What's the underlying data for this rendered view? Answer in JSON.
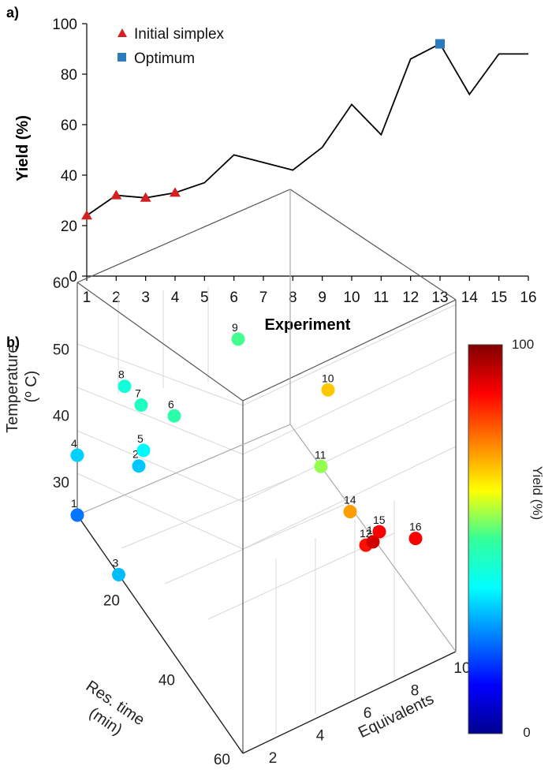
{
  "panels": {
    "a": "a)",
    "b": "b)"
  },
  "chart_data": [
    {
      "type": "line",
      "panel": "a)",
      "xlabel": "Experiment",
      "ylabel": "Yield (%)",
      "x": [
        1,
        2,
        3,
        4,
        5,
        6,
        7,
        8,
        9,
        10,
        11,
        12,
        13,
        14,
        15,
        16
      ],
      "y": [
        24,
        32,
        31,
        33,
        37,
        48,
        45,
        42,
        51,
        68,
        56,
        86,
        92,
        72,
        88,
        88
      ],
      "xlim": [
        1,
        16
      ],
      "ylim": [
        0,
        100
      ],
      "yticks": [
        0,
        20,
        40,
        60,
        80,
        100
      ],
      "xticks": [
        1,
        2,
        3,
        4,
        5,
        6,
        7,
        8,
        9,
        10,
        11,
        12,
        13,
        14,
        15,
        16
      ],
      "markers": [
        {
          "name": "Initial simplex",
          "symbol": "triangle",
          "color": "#d42020",
          "x": [
            1,
            2,
            3,
            4
          ]
        },
        {
          "name": "Optimum",
          "symbol": "square",
          "color": "#2b7bbf",
          "x": [
            13
          ]
        }
      ],
      "legend": [
        "Initial simplex",
        "Optimum"
      ],
      "line_color": "#000000"
    },
    {
      "type": "scatter3d",
      "panel": "b)",
      "xlabel": "Res. time\n(min)",
      "ylabel": "Equivalents",
      "zlabel": "Temperature\n(º C)",
      "colorbar_label": "Yield (%)",
      "colorbar_range": [
        0,
        100
      ],
      "res_time_ticks": [
        20,
        40,
        60
      ],
      "equivalents_ticks": [
        2,
        4,
        6,
        8,
        10
      ],
      "temperature_ticks": [
        30,
        40,
        50,
        60
      ],
      "res_time_range": [
        0,
        60
      ],
      "equivalents_range": [
        1,
        10
      ],
      "temperature_range": [
        25,
        60
      ],
      "points": [
        {
          "label": "1",
          "res_time": 0,
          "equivalents": 1,
          "temperature": 25,
          "yield": 24
        },
        {
          "label": "2",
          "res_time": 0,
          "equivalents": 3.6,
          "temperature": 28,
          "yield": 32
        },
        {
          "label": "3",
          "res_time": 15,
          "equivalents": 1,
          "temperature": 25,
          "yield": 31
        },
        {
          "label": "4",
          "res_time": 0,
          "equivalents": 1,
          "temperature": 34,
          "yield": 33
        },
        {
          "label": "5",
          "res_time": 0,
          "equivalents": 3.8,
          "temperature": 30,
          "yield": 37
        },
        {
          "label": "6",
          "res_time": 0,
          "equivalents": 5.1,
          "temperature": 33,
          "yield": 48
        },
        {
          "label": "7",
          "res_time": 0,
          "equivalents": 3.7,
          "temperature": 37,
          "yield": 45
        },
        {
          "label": "8",
          "res_time": 0,
          "equivalents": 3.0,
          "temperature": 41,
          "yield": 42
        },
        {
          "label": "9",
          "res_time": 0,
          "equivalents": 7.8,
          "temperature": 40,
          "yield": 51
        },
        {
          "label": "10",
          "res_time": 24,
          "equivalents": 8.8,
          "temperature": 45,
          "yield": 68
        },
        {
          "label": "11",
          "res_time": 24,
          "equivalents": 8.5,
          "temperature": 34,
          "yield": 56
        },
        {
          "label": "12",
          "res_time": 48,
          "equivalents": 7.6,
          "temperature": 38,
          "yield": 86
        },
        {
          "label": "13",
          "res_time": 48,
          "equivalents": 7.9,
          "temperature": 38,
          "yield": 92
        },
        {
          "label": "14",
          "res_time": 44,
          "equivalents": 7.4,
          "temperature": 41,
          "yield": 72
        },
        {
          "label": "15",
          "res_time": 58,
          "equivalents": 7.0,
          "temperature": 47,
          "yield": 88
        },
        {
          "label": "16",
          "res_time": 60,
          "equivalents": 8.3,
          "temperature": 45,
          "yield": 88
        }
      ]
    }
  ]
}
